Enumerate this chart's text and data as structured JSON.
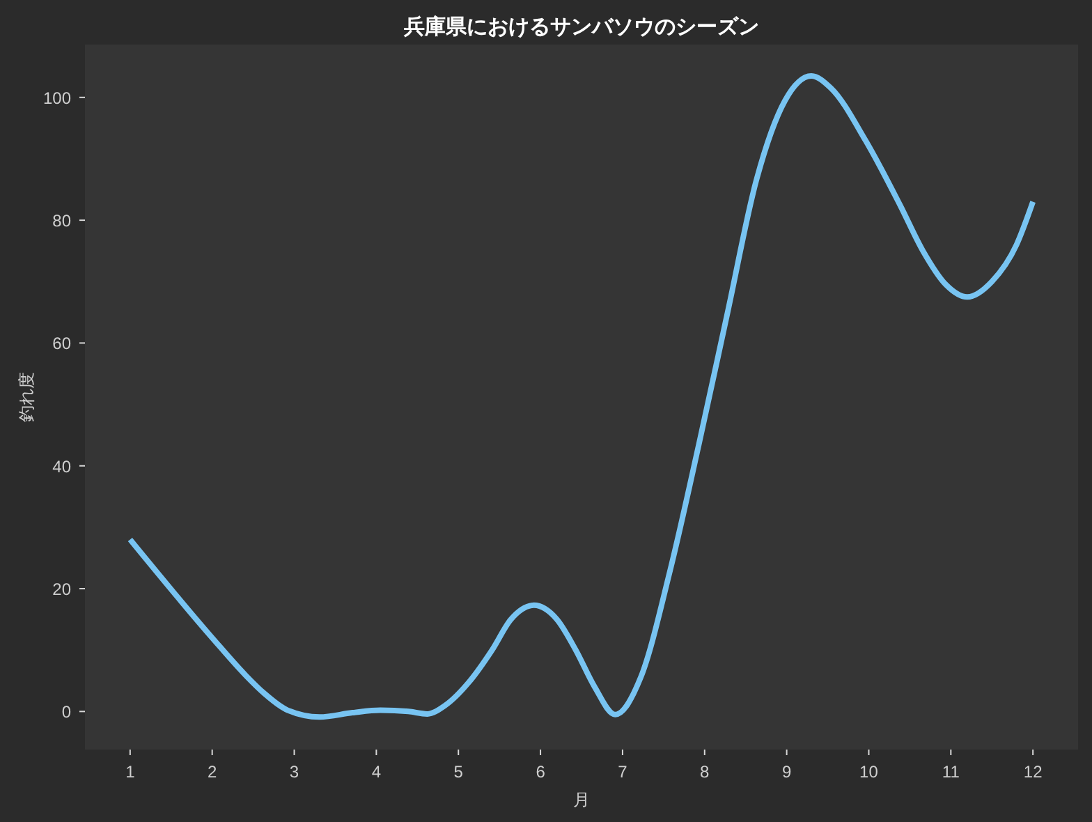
{
  "chart_data": {
    "type": "line",
    "title": "兵庫県におけるサンバソウのシーズン",
    "xlabel": "月",
    "ylabel": "釣れ度",
    "series": [
      {
        "color": "#78c4f2",
        "x": [
          1,
          2,
          2.4,
          2.63,
          2.92,
          3.31,
          3.71,
          4.05,
          4.39,
          4.62,
          4.84,
          5.13,
          5.41,
          5.64,
          5.92,
          6.2,
          6.43,
          6.66,
          6.91,
          7.22,
          7.58,
          7.93,
          8.28,
          8.63,
          8.98,
          9.3,
          9.54,
          9.96,
          10.38,
          10.66,
          10.94,
          11.2,
          11.5,
          11.8,
          12
        ],
        "values": [
          28,
          12,
          6,
          3,
          0.2,
          -0.9,
          -0.2,
          0.2,
          0,
          -0.4,
          1,
          4.8,
          10,
          15,
          17.3,
          15,
          10,
          4,
          -0.5,
          5.5,
          23,
          43.5,
          65,
          86.5,
          99.5,
          103.5,
          101.5,
          93,
          82.5,
          75,
          69.5,
          67.5,
          70,
          76,
          83
        ]
      }
    ],
    "xlim": [
      0.45,
      12.55
    ],
    "ylim": [
      -6.2,
      108.6
    ],
    "xticks": [
      1,
      2,
      3,
      4,
      5,
      6,
      7,
      8,
      9,
      10,
      11,
      12
    ],
    "yticks": [
      0,
      20,
      40,
      60,
      80,
      100
    ],
    "line_style": "solid"
  }
}
